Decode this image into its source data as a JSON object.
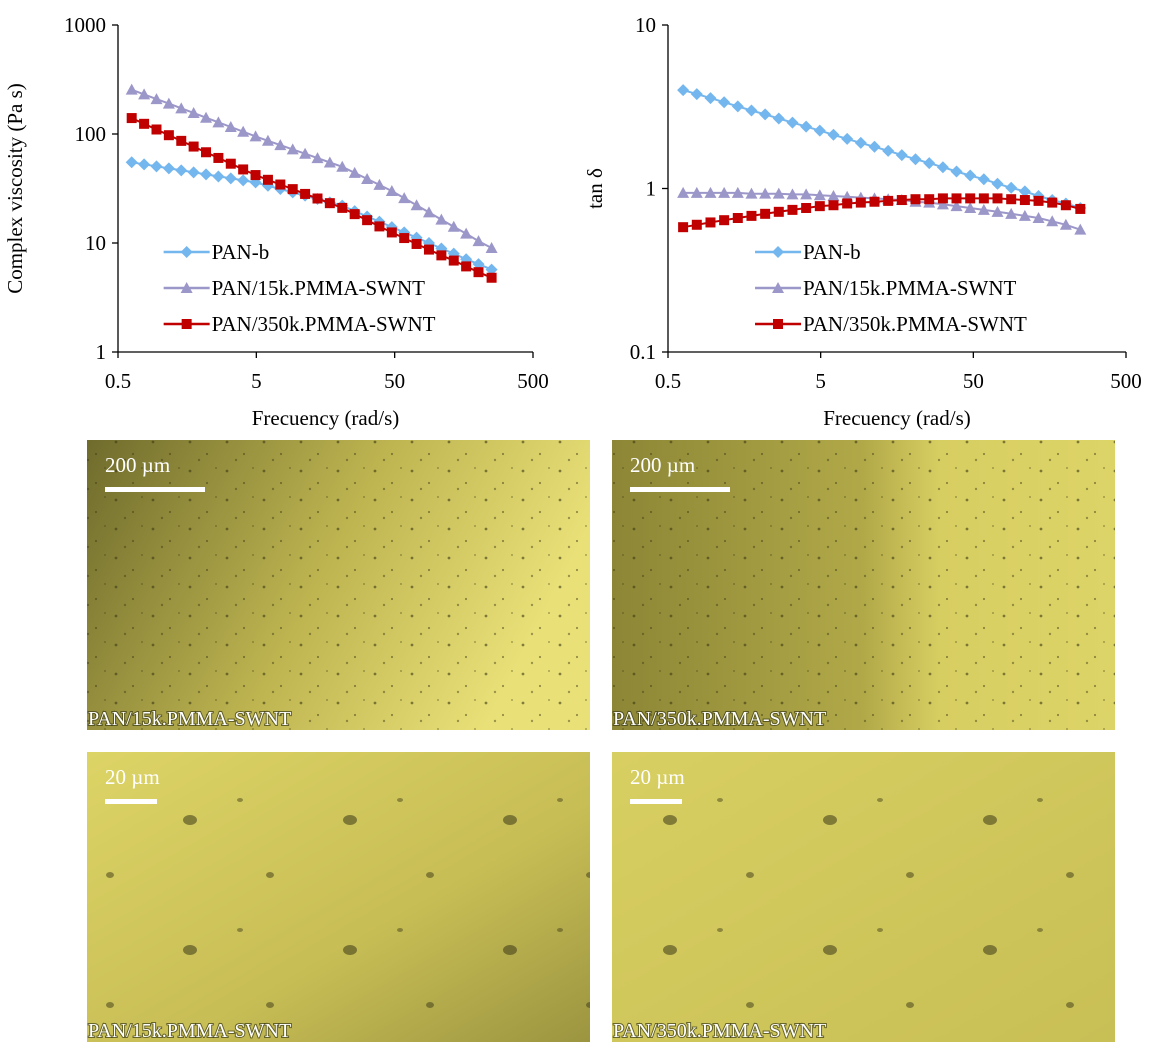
{
  "chart_data": [
    {
      "type": "line",
      "y_label": "Complex viscosity (Pa s)",
      "x_label": "Frecuency (rad/s)",
      "xlog": true,
      "ylog": true,
      "xlim": [
        0.5,
        500
      ],
      "ylim": [
        1,
        1000
      ],
      "xticks": [
        0.5,
        5,
        50,
        500
      ],
      "yticks": [
        1,
        10,
        100,
        1000
      ],
      "legend": "lower left",
      "x": [
        0.628,
        0.772,
        0.949,
        1.166,
        1.433,
        1.761,
        2.164,
        2.659,
        3.268,
        4.016,
        4.936,
        6.066,
        7.455,
        9.162,
        11.26,
        13.84,
        17.0,
        20.9,
        25.7,
        31.6,
        38.8,
        47.7,
        58.6,
        72.0,
        88.5,
        108.8,
        133.7,
        164.3,
        201.9,
        251
      ],
      "series": [
        {
          "name": "PAN-b",
          "color": "#74b6ee",
          "marker": "diamond",
          "values": [
            55.0,
            52.7,
            50.5,
            48.4,
            46.4,
            44.5,
            42.6,
            40.8,
            39.2,
            37.5,
            36.0,
            33.5,
            31.3,
            29.1,
            27.2,
            25.3,
            23.6,
            22.0,
            19.6,
            17.5,
            15.7,
            14.0,
            12.5,
            11.2,
            10.0,
            8.9,
            8.0,
            7.1,
            6.4,
            5.7
          ]
        },
        {
          "name": "PAN/15k.PMMA-SWNT",
          "color": "#9c97c9",
          "marker": "triangle",
          "values": [
            255,
            231,
            209,
            190,
            172,
            156,
            141,
            128,
            116,
            105,
            95,
            86.7,
            79.1,
            72.2,
            65.9,
            60.1,
            54.8,
            50.0,
            44.0,
            38.7,
            34.1,
            30.0,
            25.8,
            22.2,
            19.1,
            16.4,
            14.1,
            12.2,
            10.4,
            9.0
          ]
        },
        {
          "name": "PAN/350k.PMMA-SWNT",
          "color": "#c00000",
          "marker": "square",
          "values": [
            140,
            124,
            110,
            97.5,
            86.5,
            76.7,
            68.0,
            60.3,
            53.4,
            47.3,
            42.0,
            38.0,
            34.4,
            31.2,
            28.2,
            25.6,
            23.2,
            21.0,
            18.4,
            16.2,
            14.2,
            12.5,
            11.1,
            9.8,
            8.7,
            7.7,
            6.9,
            6.1,
            5.4,
            4.8
          ]
        }
      ]
    },
    {
      "type": "line",
      "y_label": "tan δ",
      "x_label": "Frecuency (rad/s)",
      "xlog": true,
      "ylog": true,
      "xlim": [
        0.5,
        500
      ],
      "ylim": [
        0.1,
        10
      ],
      "xticks": [
        0.5,
        5,
        50,
        500
      ],
      "yticks": [
        0.1,
        1,
        10
      ],
      "legend": "lower center",
      "x": [
        0.628,
        0.772,
        0.949,
        1.166,
        1.433,
        1.761,
        2.164,
        2.659,
        3.268,
        4.016,
        4.936,
        6.066,
        7.455,
        9.162,
        11.26,
        13.84,
        17.0,
        20.9,
        25.7,
        31.6,
        38.8,
        47.7,
        58.6,
        72.0,
        88.5,
        108.8,
        133.7,
        164.3,
        201.9,
        251
      ],
      "series": [
        {
          "name": "PAN-b",
          "color": "#74b6ee",
          "marker": "diamond",
          "values": [
            4.0,
            3.78,
            3.57,
            3.37,
            3.18,
            3.0,
            2.84,
            2.68,
            2.53,
            2.39,
            2.26,
            2.13,
            2.01,
            1.9,
            1.8,
            1.7,
            1.6,
            1.51,
            1.43,
            1.35,
            1.27,
            1.2,
            1.14,
            1.07,
            1.01,
            0.96,
            0.9,
            0.85,
            0.81,
            0.76
          ]
        },
        {
          "name": "PAN/15k.PMMA-SWNT",
          "color": "#9c97c9",
          "marker": "triangle",
          "values": [
            0.94,
            0.94,
            0.94,
            0.94,
            0.94,
            0.93,
            0.93,
            0.93,
            0.92,
            0.92,
            0.91,
            0.9,
            0.89,
            0.88,
            0.87,
            0.86,
            0.85,
            0.83,
            0.82,
            0.8,
            0.78,
            0.76,
            0.74,
            0.72,
            0.7,
            0.68,
            0.66,
            0.63,
            0.6,
            0.56
          ]
        },
        {
          "name": "PAN/350k.PMMA-SWNT",
          "color": "#c00000",
          "marker": "square",
          "values": [
            0.58,
            0.6,
            0.62,
            0.64,
            0.66,
            0.68,
            0.7,
            0.72,
            0.74,
            0.76,
            0.78,
            0.79,
            0.81,
            0.82,
            0.83,
            0.84,
            0.85,
            0.86,
            0.86,
            0.87,
            0.87,
            0.87,
            0.87,
            0.87,
            0.86,
            0.85,
            0.84,
            0.82,
            0.79,
            0.75
          ]
        }
      ]
    }
  ],
  "panels": [
    {
      "scale_bar": "200 µm",
      "caption": "PAN/15k.PMMA-SWNT"
    },
    {
      "scale_bar": "200 µm",
      "caption": "PAN/350k.PMMA-SWNT"
    },
    {
      "scale_bar": "20 µm",
      "caption": "PAN/15k.PMMA-SWNT"
    },
    {
      "scale_bar": "20 µm",
      "caption": "PAN/350k.PMMA-SWNT"
    }
  ]
}
